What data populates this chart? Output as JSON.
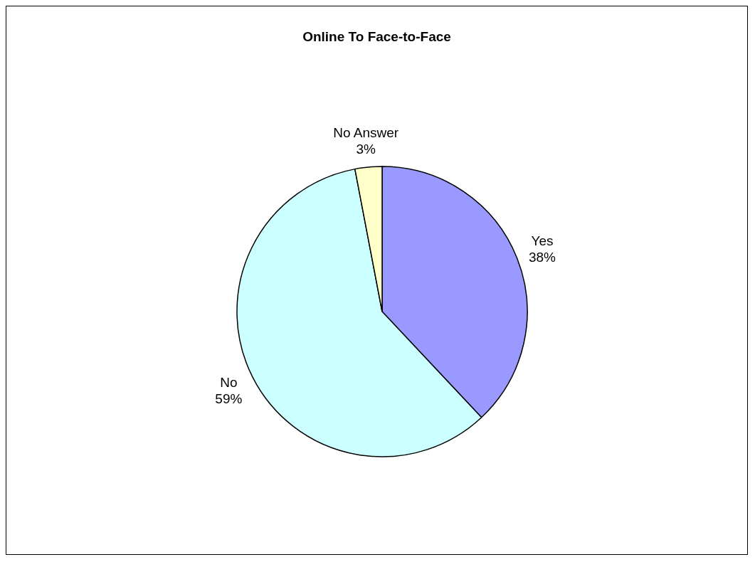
{
  "chart_data": {
    "type": "pie",
    "title": "Online To Face-to-Face",
    "categories": [
      "Yes",
      "No",
      "No Answer"
    ],
    "values": [
      38,
      59,
      3
    ],
    "colors": [
      "#9999ff",
      "#ccffff",
      "#ffffcc"
    ],
    "value_labels": [
      "38%",
      "59%",
      "3%"
    ]
  }
}
